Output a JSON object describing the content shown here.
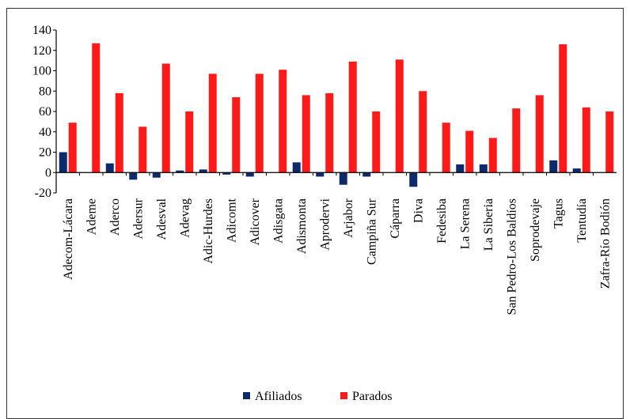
{
  "chart_data": {
    "type": "bar",
    "title": "",
    "xlabel": "",
    "ylabel": "",
    "ylim": [
      -20,
      140
    ],
    "yticks": [
      -20,
      0,
      20,
      40,
      60,
      80,
      100,
      120,
      140
    ],
    "grid": false,
    "legend_position": "bottom",
    "categories": [
      "Adecom-Lácara",
      "Ademe",
      "Aderco",
      "Adersur",
      "Adesval",
      "Adevag",
      "Adic-Hurdes",
      "Adicomt",
      "Adicover",
      "Adisgata",
      "Adismonta",
      "Aprodervi",
      "Arjabor",
      "Campiña Sur",
      "Cáparra",
      "Diva",
      "Fedesiba",
      "La Serena",
      "La Siberia",
      "San Pedro-Los Baldíos",
      "Soprodevaje",
      "Tagus",
      "Tentudía",
      "Zafra-Río Bodión"
    ],
    "series": [
      {
        "name": "Afiliados",
        "color": "#0d2a6b",
        "values": [
          20,
          0,
          9,
          -7,
          -5,
          2,
          3,
          -2,
          -4,
          0,
          10,
          -4,
          -12,
          -4,
          0,
          -14,
          0,
          8,
          8,
          0,
          0,
          12,
          4,
          0
        ]
      },
      {
        "name": "Parados",
        "color": "#ff1a1a",
        "values": [
          49,
          127,
          78,
          45,
          107,
          60,
          97,
          74,
          97,
          101,
          76,
          78,
          109,
          60,
          111,
          80,
          49,
          41,
          34,
          63,
          76,
          126,
          64,
          60
        ]
      }
    ]
  }
}
